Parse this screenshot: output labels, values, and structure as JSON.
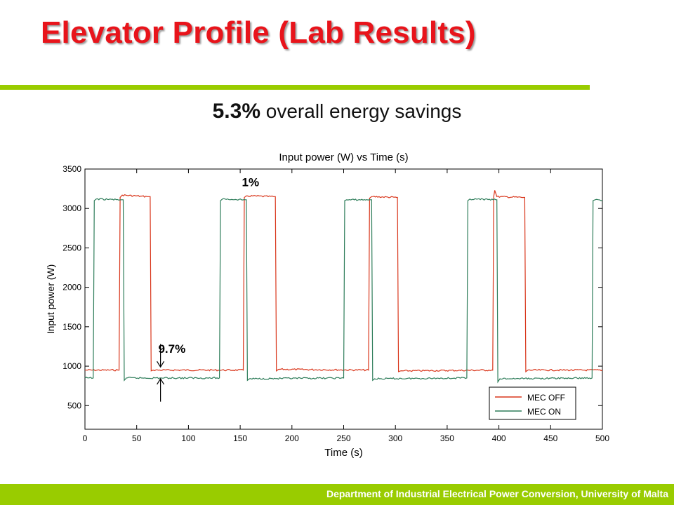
{
  "slide": {
    "title": "Elevator Profile (Lab Results)",
    "headline_value": "5.3%",
    "headline_text": " overall energy savings",
    "footer": "Department of Industrial Electrical Power Conversion, University of Malta"
  },
  "colors": {
    "title": "#e8141b",
    "accent": "#99cc00",
    "mec_off": "#d9361b",
    "mec_on": "#2e7d5a"
  },
  "chart_data": {
    "type": "line",
    "title": "Input power (W) vs Time (s)",
    "xlabel": "Time (s)",
    "ylabel": "Input power (W)",
    "xlim": [
      0,
      500
    ],
    "ylim": [
      200,
      3500
    ],
    "xticks": [
      0,
      50,
      100,
      150,
      200,
      250,
      300,
      350,
      400,
      450,
      500
    ],
    "yticks": [
      500,
      1000,
      1500,
      2000,
      2500,
      3000,
      3500
    ],
    "grid": false,
    "legend": {
      "position": "bottom-right"
    },
    "series": [
      {
        "name": "MEC OFF",
        "points": [
          [
            0,
            950
          ],
          [
            33,
            950
          ],
          [
            34,
            3140
          ],
          [
            36,
            3170
          ],
          [
            60,
            3150
          ],
          [
            63,
            3150
          ],
          [
            64,
            940
          ],
          [
            66,
            950
          ],
          [
            153,
            950
          ],
          [
            154,
            3140
          ],
          [
            156,
            3160
          ],
          [
            182,
            3150
          ],
          [
            184,
            3150
          ],
          [
            185,
            940
          ],
          [
            187,
            960
          ],
          [
            274,
            950
          ],
          [
            275,
            3130
          ],
          [
            277,
            3150
          ],
          [
            301,
            3140
          ],
          [
            302,
            3140
          ],
          [
            303,
            930
          ],
          [
            305,
            940
          ],
          [
            394,
            950
          ],
          [
            395,
            3150
          ],
          [
            396,
            3230
          ],
          [
            398,
            3150
          ],
          [
            424,
            3140
          ],
          [
            425,
            3140
          ],
          [
            426,
            930
          ],
          [
            428,
            950
          ],
          [
            500,
            950
          ]
        ]
      },
      {
        "name": "MEC ON",
        "points": [
          [
            0,
            850
          ],
          [
            8,
            850
          ],
          [
            9,
            3100
          ],
          [
            11,
            3120
          ],
          [
            35,
            3110
          ],
          [
            37,
            3110
          ],
          [
            38,
            820
          ],
          [
            40,
            850
          ],
          [
            130,
            850
          ],
          [
            131,
            3100
          ],
          [
            133,
            3120
          ],
          [
            155,
            3110
          ],
          [
            156,
            3110
          ],
          [
            157,
            820
          ],
          [
            159,
            840
          ],
          [
            250,
            850
          ],
          [
            251,
            3100
          ],
          [
            253,
            3110
          ],
          [
            276,
            3110
          ],
          [
            277,
            3110
          ],
          [
            278,
            820
          ],
          [
            280,
            840
          ],
          [
            369,
            850
          ],
          [
            370,
            3100
          ],
          [
            372,
            3120
          ],
          [
            397,
            3110
          ],
          [
            398,
            3110
          ],
          [
            399,
            800
          ],
          [
            401,
            840
          ],
          [
            490,
            850
          ],
          [
            491,
            3100
          ],
          [
            493,
            3110
          ],
          [
            500,
            3100
          ]
        ]
      }
    ],
    "annotations": [
      {
        "text": "1%",
        "x": 160,
        "y": 3280
      },
      {
        "text": "9.7%",
        "x": 84,
        "y": 1170
      }
    ],
    "arrows": [
      {
        "x": 73,
        "y_from": 1280,
        "y_to": 990
      },
      {
        "x": 73,
        "y_from": 550,
        "y_to": 840
      }
    ]
  }
}
